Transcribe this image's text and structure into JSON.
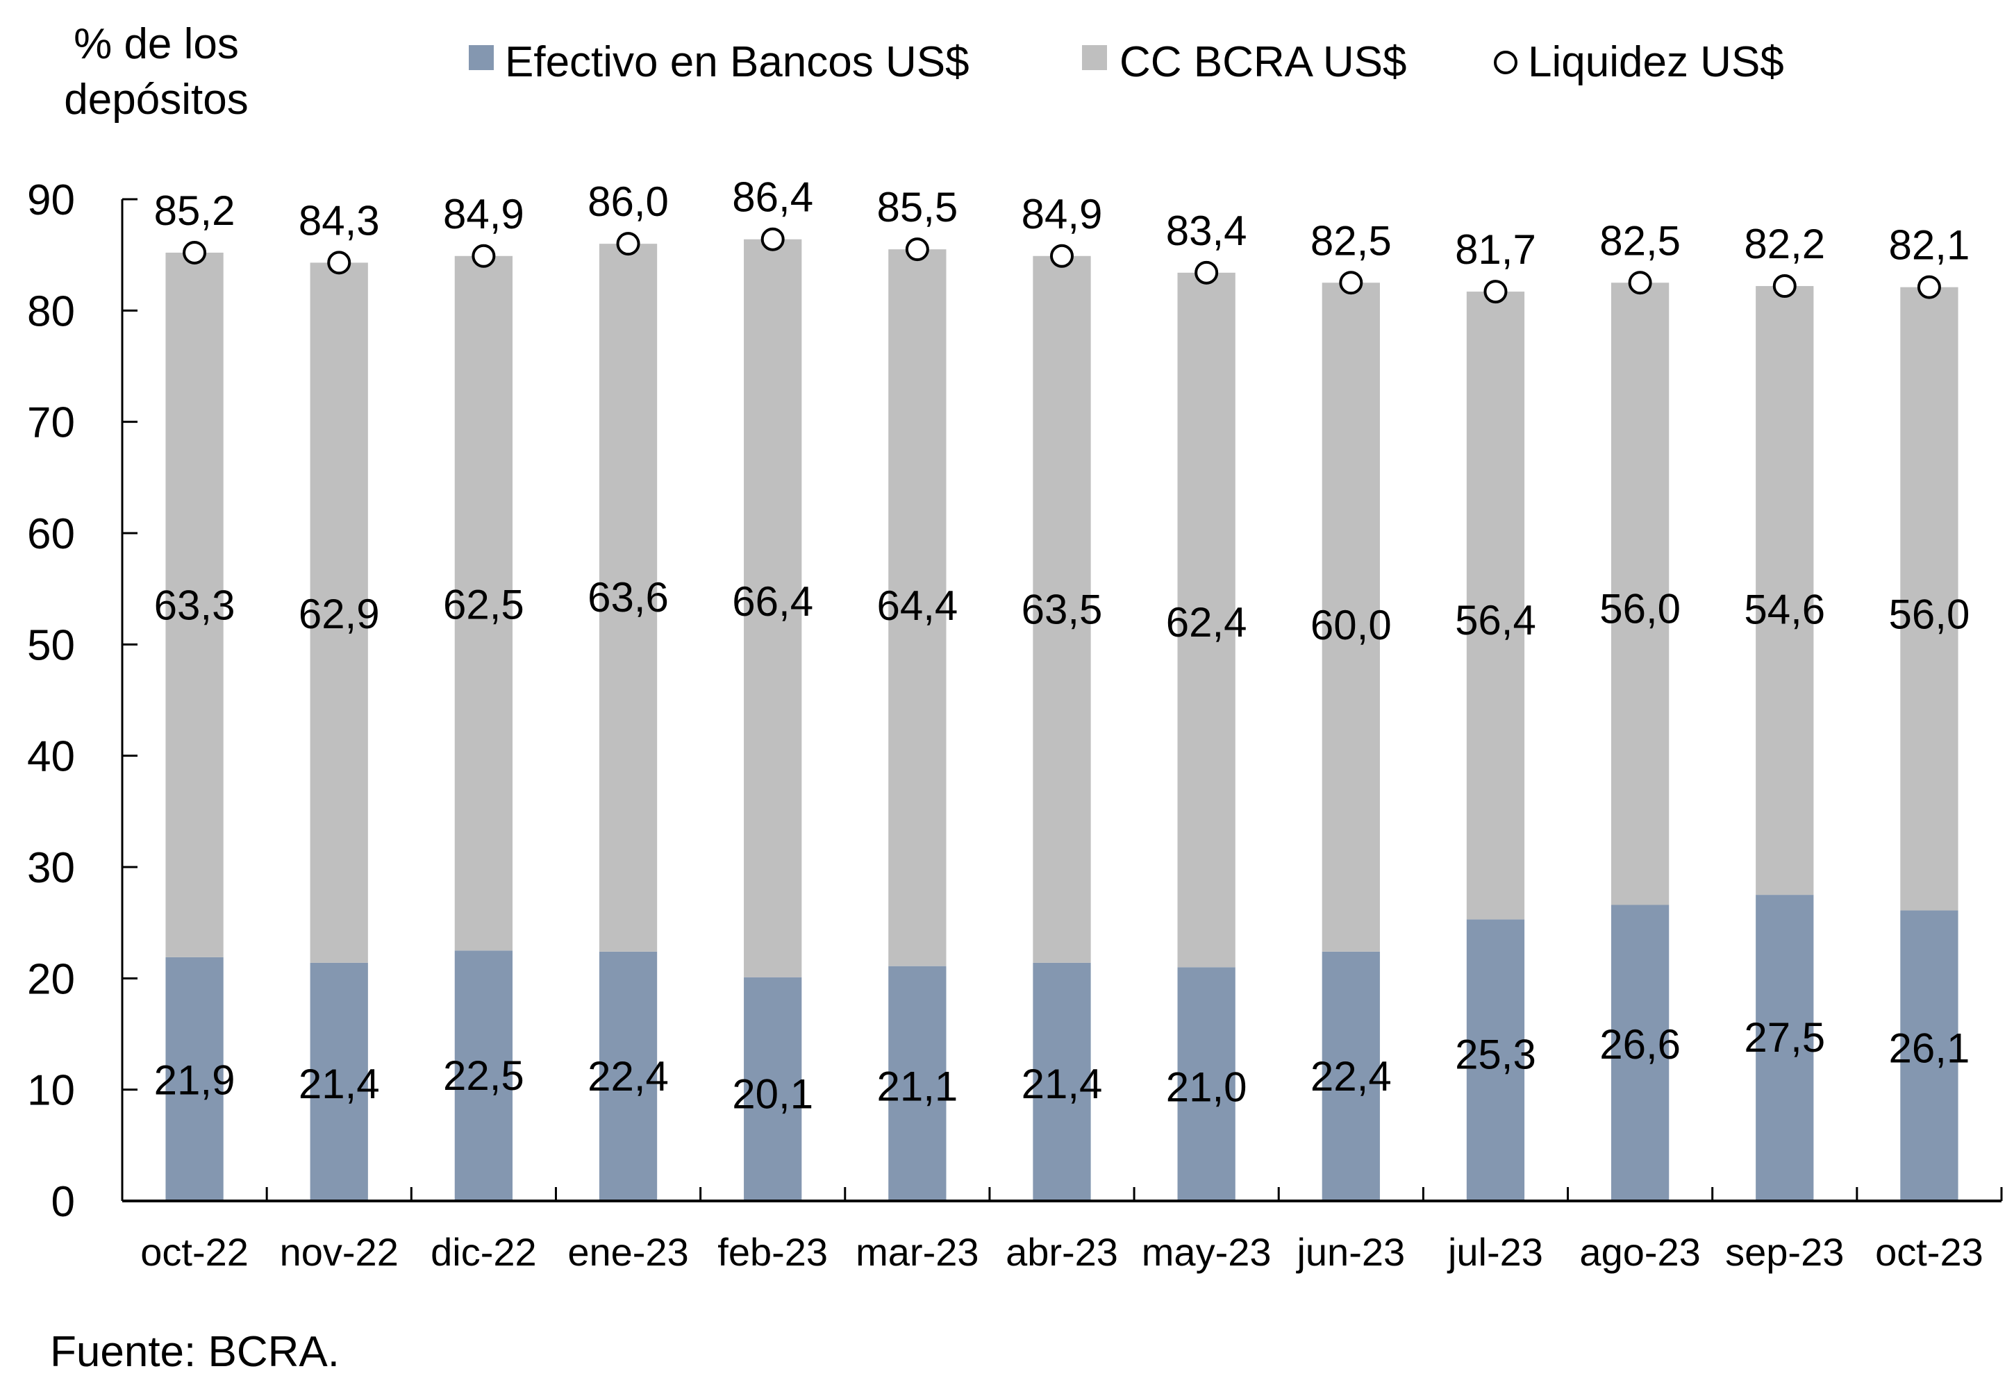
{
  "chart_data": {
    "type": "bar",
    "stacked": true,
    "title": "",
    "ylabel_lines": [
      "% de los",
      "depósitos"
    ],
    "xlabel": "",
    "ylim": [
      0,
      90
    ],
    "yticks": [
      0,
      10,
      20,
      30,
      40,
      50,
      60,
      70,
      80,
      90
    ],
    "grid": false,
    "legend_position": "top",
    "categories": [
      "oct-22",
      "nov-22",
      "dic-22",
      "ene-23",
      "feb-23",
      "mar-23",
      "abr-23",
      "may-23",
      "jun-23",
      "jul-23",
      "ago-23",
      "sep-23",
      "oct-23"
    ],
    "series": [
      {
        "name": "Efectivo en Bancos US$",
        "kind": "bar",
        "color": "#8497B0",
        "values": [
          21.9,
          21.4,
          22.5,
          22.4,
          20.1,
          21.1,
          21.4,
          21.0,
          22.4,
          25.3,
          26.6,
          27.5,
          26.1
        ],
        "labels": [
          "21,9",
          "21,4",
          "22,5",
          "22,4",
          "20,1",
          "21,1",
          "21,4",
          "21,0",
          "22,4",
          "25,3",
          "26,6",
          "27,5",
          "26,1"
        ]
      },
      {
        "name": "CC BCRA US$",
        "kind": "bar",
        "color": "#BFBFBF",
        "values": [
          63.3,
          62.9,
          62.5,
          63.6,
          66.4,
          64.4,
          63.5,
          62.4,
          60.0,
          56.4,
          56.0,
          54.6,
          56.0
        ],
        "labels": [
          "63,3",
          "62,9",
          "62,5",
          "63,6",
          "66,4",
          "64,4",
          "63,5",
          "62,4",
          "60,0",
          "56,4",
          "56,0",
          "54,6",
          "56,0"
        ]
      },
      {
        "name": "Liquidez US$",
        "kind": "marker",
        "color": "#FFFFFF",
        "values": [
          85.2,
          84.3,
          84.9,
          86.0,
          86.4,
          85.5,
          84.9,
          83.4,
          82.5,
          81.7,
          82.5,
          82.2,
          82.1
        ],
        "labels": [
          "85,2",
          "84,3",
          "84,9",
          "86,0",
          "86,4",
          "85,5",
          "84,9",
          "83,4",
          "82,5",
          "81,7",
          "82,5",
          "82,2",
          "82,1"
        ]
      }
    ],
    "source": "Fuente: BCRA."
  }
}
